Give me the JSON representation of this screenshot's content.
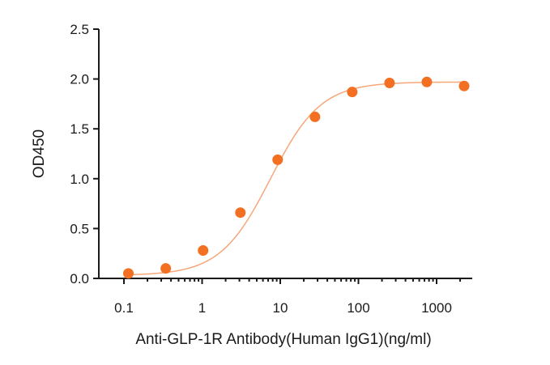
{
  "chart_data": {
    "type": "scatter",
    "title": "",
    "xlabel": "Anti-GLP-1R Antibody(Human IgG1)(ng/ml)",
    "ylabel": "OD450",
    "x_scale": "log",
    "xlim": [
      0.1,
      2500
    ],
    "ylim": [
      0,
      2.5
    ],
    "x_ticks": [
      0.1,
      1,
      10,
      100,
      1000
    ],
    "x_tick_labels": [
      "0.1",
      "1",
      "10",
      "100",
      "1000"
    ],
    "y_ticks": [
      0.0,
      0.5,
      1.0,
      1.5,
      2.0,
      2.5
    ],
    "y_tick_labels": [
      "0.0",
      "0.5",
      "1.0",
      "1.5",
      "2.0",
      "2.5"
    ],
    "grid": false,
    "legend": "none",
    "series": [
      {
        "x": [
          0.114,
          0.343,
          1.03,
          3.09,
          9.26,
          27.8,
          83.3,
          250,
          750,
          2250
        ],
        "y": [
          0.05,
          0.1,
          0.28,
          0.66,
          1.19,
          1.62,
          1.87,
          1.96,
          1.97,
          1.93
        ],
        "fit": "4PL sigmoid"
      }
    ],
    "colors": {
      "points": "#f36f21",
      "curve": "#f5a77a",
      "axis": "#1a1a1a"
    }
  }
}
